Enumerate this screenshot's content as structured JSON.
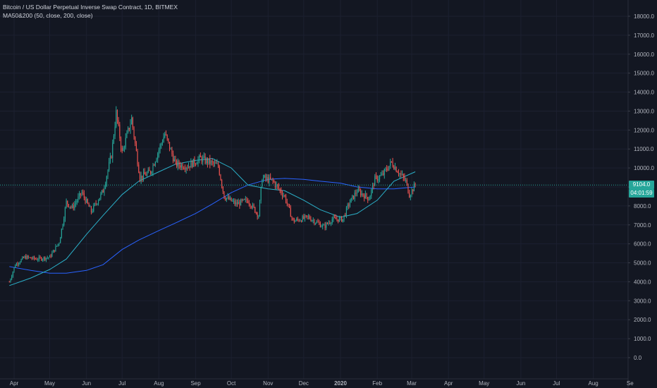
{
  "header": {
    "title": "Bitcoin / US Dollar Perpetual Inverse Swap Contract, 1D, BITMEX",
    "indicator": "MA50&200 (50, close, 200, close)"
  },
  "price_panel": {
    "last_price": "9104.0",
    "countdown": "04:01:59"
  },
  "colors": {
    "background": "#131722",
    "up": "#26a69a",
    "down": "#ef5350",
    "ma50": "#2bb0c9",
    "ma200": "#2962ff",
    "price_line": "#26a69a",
    "axis_text": "#b2b5be"
  },
  "chart_data": {
    "type": "candlestick",
    "title": "Bitcoin / US Dollar Perpetual Inverse Swap Contract, 1D, BITMEX",
    "x_labels": [
      "Apr",
      "May",
      "Jun",
      "Jul",
      "Aug",
      "Sep",
      "Oct",
      "Nov",
      "Dec",
      "2020",
      "Feb",
      "Mar",
      "Apr",
      "May",
      "Jun",
      "Jul",
      "Aug",
      "Se"
    ],
    "y_ticks": [
      "0.0",
      "1000.0",
      "2000.0",
      "3000.0",
      "4000.0",
      "5000.0",
      "6000.0",
      "7000.0",
      "8000.0",
      "9000.0",
      "10000.0",
      "11000.0",
      "12000.0",
      "13000.0",
      "14000.0",
      "15000.0",
      "16000.0",
      "17000.0",
      "18000.0"
    ],
    "ylim": [
      -700,
      18500
    ],
    "last_price": 9104,
    "price_path": [
      [
        "2019-03-28",
        4000
      ],
      [
        "2019-04-02",
        4900
      ],
      [
        "2019-04-10",
        5300
      ],
      [
        "2019-04-20",
        5200
      ],
      [
        "2019-05-01",
        5300
      ],
      [
        "2019-05-09",
        6100
      ],
      [
        "2019-05-12",
        7100
      ],
      [
        "2019-05-15",
        8200
      ],
      [
        "2019-05-20",
        7900
      ],
      [
        "2019-05-28",
        8700
      ],
      [
        "2019-06-05",
        7700
      ],
      [
        "2019-06-15",
        8800
      ],
      [
        "2019-06-22",
        10700
      ],
      [
        "2019-06-26",
        12900
      ],
      [
        "2019-07-01",
        10800
      ],
      [
        "2019-07-09",
        12600
      ],
      [
        "2019-07-16",
        9500
      ],
      [
        "2019-07-25",
        9800
      ],
      [
        "2019-08-06",
        11800
      ],
      [
        "2019-08-15",
        10200
      ],
      [
        "2019-08-25",
        10100
      ],
      [
        "2019-09-05",
        10500
      ],
      [
        "2019-09-20",
        10100
      ],
      [
        "2019-09-25",
        8500
      ],
      [
        "2019-10-05",
        8100
      ],
      [
        "2019-10-15",
        8300
      ],
      [
        "2019-10-24",
        7500
      ],
      [
        "2019-10-27",
        9500
      ],
      [
        "2019-11-05",
        9300
      ],
      [
        "2019-11-15",
        8500
      ],
      [
        "2019-11-22",
        7200
      ],
      [
        "2019-12-05",
        7400
      ],
      [
        "2019-12-18",
        6900
      ],
      [
        "2019-12-25",
        7300
      ],
      [
        "2020-01-03",
        7300
      ],
      [
        "2020-01-08",
        8100
      ],
      [
        "2020-01-15",
        8800
      ],
      [
        "2020-01-25",
        8400
      ],
      [
        "2020-01-30",
        9400
      ],
      [
        "2020-02-05",
        9600
      ],
      [
        "2020-02-13",
        10300
      ],
      [
        "2020-02-20",
        9700
      ],
      [
        "2020-02-25",
        9300
      ],
      [
        "2020-02-28",
        8600
      ],
      [
        "2020-03-04",
        9104
      ]
    ],
    "series": [
      {
        "name": "MA 50",
        "points": [
          [
            "2019-03-28",
            3800
          ],
          [
            "2019-04-15",
            4200
          ],
          [
            "2019-05-01",
            4650
          ],
          [
            "2019-05-15",
            5200
          ],
          [
            "2019-06-01",
            6500
          ],
          [
            "2019-06-15",
            7500
          ],
          [
            "2019-07-01",
            8600
          ],
          [
            "2019-07-15",
            9300
          ],
          [
            "2019-08-01",
            9800
          ],
          [
            "2019-08-15",
            10200
          ],
          [
            "2019-09-01",
            10400
          ],
          [
            "2019-09-15",
            10500
          ],
          [
            "2019-10-01",
            10000
          ],
          [
            "2019-10-15",
            9100
          ],
          [
            "2019-11-01",
            8900
          ],
          [
            "2019-11-15",
            8800
          ],
          [
            "2019-12-01",
            8300
          ],
          [
            "2019-12-15",
            7800
          ],
          [
            "2020-01-01",
            7400
          ],
          [
            "2020-01-15",
            7600
          ],
          [
            "2020-02-01",
            8300
          ],
          [
            "2020-02-15",
            9300
          ],
          [
            "2020-03-04",
            9800
          ]
        ]
      },
      {
        "name": "MA 200",
        "points": [
          [
            "2019-03-28",
            4800
          ],
          [
            "2019-04-15",
            4600
          ],
          [
            "2019-05-01",
            4450
          ],
          [
            "2019-05-15",
            4450
          ],
          [
            "2019-06-01",
            4600
          ],
          [
            "2019-06-15",
            4900
          ],
          [
            "2019-07-01",
            5700
          ],
          [
            "2019-07-15",
            6200
          ],
          [
            "2019-08-01",
            6700
          ],
          [
            "2019-08-15",
            7100
          ],
          [
            "2019-09-01",
            7600
          ],
          [
            "2019-09-15",
            8100
          ],
          [
            "2019-10-01",
            8700
          ],
          [
            "2019-10-15",
            9100
          ],
          [
            "2019-11-01",
            9400
          ],
          [
            "2019-11-15",
            9450
          ],
          [
            "2019-12-01",
            9400
          ],
          [
            "2019-12-15",
            9300
          ],
          [
            "2020-01-01",
            9200
          ],
          [
            "2020-01-15",
            9000
          ],
          [
            "2020-02-01",
            8900
          ],
          [
            "2020-02-15",
            8900
          ],
          [
            "2020-03-04",
            9000
          ]
        ]
      }
    ]
  }
}
